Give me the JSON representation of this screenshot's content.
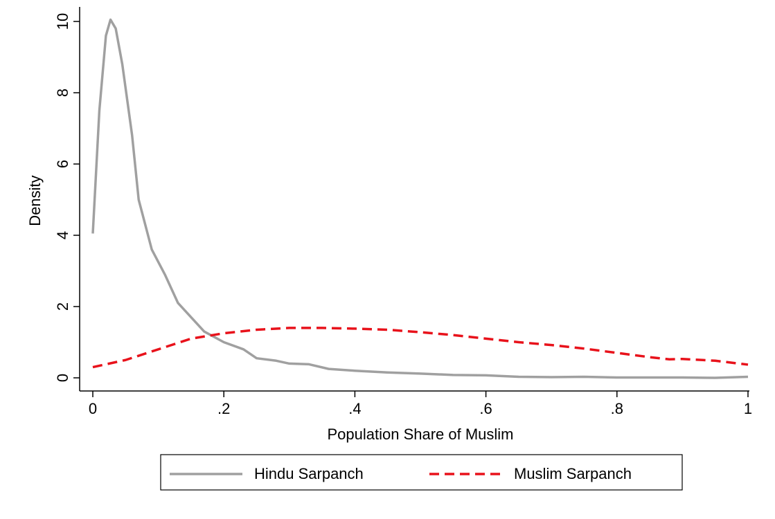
{
  "chart_data": {
    "type": "line",
    "x_label": "Population Share of Muslim",
    "y_label": "Density",
    "xlim": [
      0,
      1
    ],
    "ylim": [
      0,
      10
    ],
    "xticks": [
      0,
      {
        "value": 0.2,
        "label": ".2"
      },
      {
        "value": 0.4,
        "label": ".4"
      },
      {
        "value": 0.6,
        "label": ".6"
      },
      {
        "value": 0.8,
        "label": ".8"
      },
      1
    ],
    "yticks": [
      0,
      2,
      4,
      6,
      8,
      10
    ],
    "grid": false,
    "legend": "bottom",
    "series": [
      {
        "name": "Hindu Sarpanch",
        "color": "#a0a0a0",
        "dash": "solid",
        "x": [
          0,
          0.01,
          0.02,
          0.027,
          0.035,
          0.045,
          0.06,
          0.07,
          0.09,
          0.11,
          0.13,
          0.15,
          0.17,
          0.2,
          0.23,
          0.25,
          0.28,
          0.3,
          0.33,
          0.36,
          0.4,
          0.45,
          0.5,
          0.55,
          0.6,
          0.65,
          0.7,
          0.75,
          0.8,
          0.85,
          0.9,
          0.95,
          1
        ],
        "values": [
          4.05,
          7.5,
          9.6,
          10.05,
          9.8,
          8.8,
          6.8,
          5.0,
          3.6,
          2.9,
          2.1,
          1.7,
          1.3,
          1.0,
          0.8,
          0.55,
          0.48,
          0.4,
          0.38,
          0.25,
          0.2,
          0.15,
          0.12,
          0.08,
          0.07,
          0.03,
          0.02,
          0.03,
          0.01,
          0.01,
          0.01,
          0.0,
          0.03
        ]
      },
      {
        "name": "Muslim Sarpanch",
        "color": "#e8121b",
        "dash": "dashed",
        "x": [
          0,
          0.05,
          0.1,
          0.15,
          0.2,
          0.25,
          0.3,
          0.35,
          0.4,
          0.45,
          0.5,
          0.55,
          0.6,
          0.65,
          0.7,
          0.75,
          0.8,
          0.85,
          0.88,
          0.9,
          0.95,
          1
        ],
        "values": [
          0.3,
          0.5,
          0.8,
          1.1,
          1.25,
          1.35,
          1.4,
          1.4,
          1.38,
          1.35,
          1.28,
          1.2,
          1.1,
          1.0,
          0.92,
          0.82,
          0.7,
          0.58,
          0.52,
          0.53,
          0.48,
          0.37
        ]
      }
    ]
  }
}
